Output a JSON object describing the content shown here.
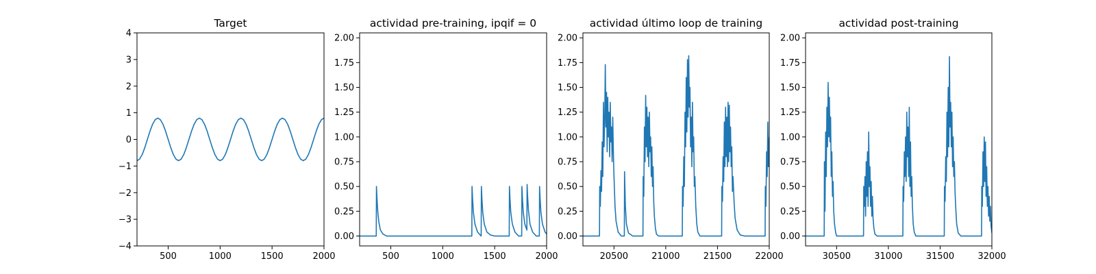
{
  "colors": {
    "series": "#1f77b4",
    "frame": "#000000",
    "background": "#ffffff"
  },
  "chart_data": [
    {
      "type": "line",
      "title": "Target",
      "xlabel": "",
      "ylabel": "",
      "xlim": [
        200,
        2000
      ],
      "ylim": [
        -4,
        4
      ],
      "xticks": [
        500,
        1000,
        1500,
        2000
      ],
      "xtick_labels": [
        "500",
        "1000",
        "1500",
        "2000"
      ],
      "yticks": [
        -4,
        -3,
        -2,
        -1,
        0,
        1,
        2,
        3,
        4
      ],
      "ytick_labels": [
        "−4",
        "−3",
        "−2",
        "−1",
        "0",
        "1",
        "2",
        "3",
        "4"
      ],
      "series": [
        {
          "x": [
            200,
            225,
            250,
            275,
            300,
            325,
            350,
            375,
            400,
            425,
            450,
            475,
            500,
            525,
            550,
            575,
            600,
            625,
            650,
            675,
            700,
            725,
            750,
            775,
            800,
            825,
            850,
            875,
            900,
            925,
            950,
            975,
            1000,
            1025,
            1050,
            1075,
            1100,
            1125,
            1150,
            1175,
            1200,
            1225,
            1250,
            1275,
            1300,
            1325,
            1350,
            1375,
            1400,
            1425,
            1450,
            1475,
            1500,
            1525,
            1550,
            1575,
            1600,
            1625,
            1650,
            1675,
            1700,
            1725,
            1750,
            1775,
            1800,
            1825,
            1850,
            1875,
            1900,
            1925,
            1950,
            1975,
            2000
          ],
          "y": [
            -0.8,
            -0.74,
            -0.57,
            -0.31,
            0.0,
            0.31,
            0.57,
            0.74,
            0.8,
            0.74,
            0.57,
            0.31,
            0.0,
            -0.31,
            -0.57,
            -0.74,
            -0.8,
            -0.74,
            -0.57,
            -0.31,
            0.0,
            0.31,
            0.57,
            0.74,
            0.8,
            0.74,
            0.57,
            0.31,
            0.0,
            -0.31,
            -0.57,
            -0.74,
            -0.8,
            -0.74,
            -0.57,
            -0.31,
            0.0,
            0.31,
            0.57,
            0.74,
            0.8,
            0.74,
            0.57,
            0.31,
            0.0,
            -0.31,
            -0.57,
            -0.74,
            -0.8,
            -0.74,
            -0.57,
            -0.31,
            0.0,
            0.31,
            0.57,
            0.74,
            0.8,
            0.74,
            0.57,
            0.31,
            0.0,
            -0.31,
            -0.57,
            -0.74,
            -0.8,
            -0.74,
            -0.57,
            -0.31,
            0.0,
            0.31,
            0.57,
            0.74,
            0.8
          ]
        }
      ]
    },
    {
      "type": "line",
      "title": "actividad pre-training, ipqif = 0",
      "xlabel": "",
      "ylabel": "",
      "xlim": [
        200,
        2000
      ],
      "ylim": [
        -0.1,
        2.05
      ],
      "xticks": [
        500,
        1000,
        1500,
        2000
      ],
      "xtick_labels": [
        "500",
        "1000",
        "1500",
        "2000"
      ],
      "yticks": [
        0.0,
        0.25,
        0.5,
        0.75,
        1.0,
        1.25,
        1.5,
        1.75,
        2.0
      ],
      "ytick_labels": [
        "0.00",
        "0.25",
        "0.50",
        "0.75",
        "1.00",
        "1.25",
        "1.50",
        "1.75",
        "2.00"
      ],
      "series": [
        {
          "x": [
            200,
            360,
            362,
            367,
            375,
            385,
            400,
            425,
            460,
            520,
            600,
            800,
            1000,
            1200,
            1280,
            1282,
            1287,
            1295,
            1310,
            1335,
            1370,
            1372,
            1377,
            1385,
            1400,
            1425,
            1460,
            1500,
            1560,
            1640,
            1642,
            1647,
            1655,
            1670,
            1695,
            1730,
            1760,
            1762,
            1767,
            1775,
            1790,
            1810,
            1812,
            1817,
            1825,
            1840,
            1865,
            1900,
            1930,
            1932,
            1937,
            1945,
            1960,
            1985,
            2000
          ],
          "y": [
            0.0,
            0.0,
            0.5,
            0.38,
            0.24,
            0.14,
            0.06,
            0.02,
            0.0,
            0.0,
            0.0,
            0.0,
            0.0,
            0.0,
            0.0,
            0.5,
            0.38,
            0.24,
            0.12,
            0.04,
            0.0,
            0.5,
            0.38,
            0.24,
            0.12,
            0.04,
            0.01,
            0.0,
            0.0,
            0.0,
            0.5,
            0.38,
            0.24,
            0.12,
            0.04,
            0.0,
            0.0,
            0.5,
            0.38,
            0.24,
            0.12,
            0.06,
            0.52,
            0.4,
            0.26,
            0.12,
            0.04,
            0.0,
            0.0,
            0.5,
            0.38,
            0.24,
            0.12,
            0.04,
            0.02
          ]
        }
      ]
    },
    {
      "type": "line",
      "title": "actividad último loop de training",
      "xlabel": "",
      "ylabel": "",
      "xlim": [
        20200,
        22000
      ],
      "ylim": [
        -0.1,
        2.05
      ],
      "xticks": [
        20500,
        21000,
        21500,
        22000
      ],
      "xtick_labels": [
        "20500",
        "21000",
        "21500",
        "22000"
      ],
      "yticks": [
        0.0,
        0.25,
        0.5,
        0.75,
        1.0,
        1.25,
        1.5,
        1.75,
        2.0
      ],
      "ytick_labels": [
        "0.00",
        "0.25",
        "0.50",
        "0.75",
        "1.00",
        "1.25",
        "1.50",
        "1.75",
        "2.00"
      ],
      "series": [
        {
          "x": [
            20200,
            20360,
            20362,
            20368,
            20374,
            20380,
            20386,
            20392,
            20398,
            20404,
            20410,
            20416,
            20422,
            20428,
            20434,
            20440,
            20446,
            20452,
            20458,
            20464,
            20470,
            20476,
            20482,
            20488,
            20494,
            20500,
            20510,
            20520,
            20540,
            20570,
            20600,
            20602,
            20610,
            20620,
            20640,
            20680,
            20740,
            20780,
            20782,
            20788,
            20794,
            20800,
            20806,
            20812,
            20818,
            20824,
            20830,
            20836,
            20842,
            20848,
            20854,
            20860,
            20866,
            20872,
            20878,
            20884,
            20890,
            20900,
            20910,
            20930,
            20960,
            21000,
            21050,
            21100,
            21140,
            21160,
            21162,
            21168,
            21174,
            21180,
            21186,
            21192,
            21198,
            21204,
            21210,
            21216,
            21222,
            21228,
            21234,
            21240,
            21246,
            21252,
            21258,
            21264,
            21270,
            21276,
            21282,
            21290,
            21300,
            21310,
            21330,
            21360,
            21400,
            21450,
            21500,
            21540,
            21542,
            21548,
            21554,
            21560,
            21566,
            21572,
            21578,
            21584,
            21590,
            21596,
            21602,
            21608,
            21614,
            21620,
            21626,
            21632,
            21638,
            21644,
            21650,
            21660,
            21670,
            21690,
            21720,
            21760,
            21800,
            21850,
            21900,
            21960,
            21962,
            21968,
            21974,
            21980,
            21986,
            21992,
            22000
          ],
          "y": [
            0.0,
            0.0,
            0.5,
            0.3,
            0.66,
            0.45,
            0.95,
            0.6,
            1.35,
            0.9,
            1.15,
            1.73,
            1.1,
            1.45,
            0.85,
            1.4,
            1.0,
            1.25,
            0.8,
            1.35,
            0.95,
            1.1,
            0.75,
            1.2,
            0.85,
            0.6,
            0.3,
            0.15,
            0.04,
            0.0,
            0.0,
            0.65,
            0.3,
            0.12,
            0.03,
            0.0,
            0.0,
            0.0,
            0.6,
            0.4,
            1.1,
            0.75,
            1.42,
            0.9,
            1.3,
            0.8,
            1.2,
            0.7,
            1.25,
            0.85,
            1.0,
            0.6,
            0.9,
            0.5,
            0.7,
            0.35,
            0.2,
            0.08,
            0.02,
            0.0,
            0.0,
            0.0,
            0.0,
            0.0,
            0.0,
            0.0,
            0.5,
            0.3,
            0.8,
            0.5,
            1.25,
            0.9,
            1.6,
            1.05,
            1.78,
            1.2,
            1.82,
            1.3,
            1.5,
            0.9,
            1.2,
            0.7,
            1.35,
            0.85,
            1.0,
            0.5,
            0.6,
            0.3,
            0.12,
            0.04,
            0.0,
            0.0,
            0.0,
            0.0,
            0.0,
            0.0,
            0.5,
            0.35,
            0.8,
            0.55,
            1.15,
            0.7,
            1.3,
            0.8,
            1.2,
            0.7,
            1.35,
            0.75,
            1.32,
            0.85,
            1.1,
            0.7,
            0.9,
            0.45,
            0.6,
            0.35,
            0.18,
            0.06,
            0.01,
            0.0,
            0.0,
            0.0,
            0.0,
            0.0,
            0.5,
            0.3,
            0.85,
            0.6,
            1.15,
            0.7,
            1.0
          ]
        }
      ]
    },
    {
      "type": "line",
      "title": "actividad post-training",
      "xlabel": "",
      "ylabel": "",
      "xlim": [
        30200,
        32000
      ],
      "ylim": [
        -0.1,
        2.05
      ],
      "xticks": [
        30500,
        31000,
        31500,
        32000
      ],
      "xtick_labels": [
        "30500",
        "31000",
        "31500",
        "32000"
      ],
      "yticks": [
        0.0,
        0.25,
        0.5,
        0.75,
        1.0,
        1.25,
        1.5,
        1.75,
        2.0
      ],
      "ytick_labels": [
        "0.00",
        "0.25",
        "0.50",
        "0.75",
        "1.00",
        "1.25",
        "1.50",
        "1.75",
        "2.00"
      ],
      "series": [
        {
          "x": [
            30200,
            30380,
            30382,
            30388,
            30394,
            30400,
            30406,
            30412,
            30418,
            30424,
            30430,
            30436,
            30442,
            30448,
            30454,
            30460,
            30466,
            30472,
            30480,
            30490,
            30500,
            30520,
            30550,
            30590,
            30640,
            30700,
            30760,
            30762,
            30768,
            30774,
            30780,
            30786,
            30792,
            30798,
            30804,
            30810,
            30816,
            30822,
            30828,
            30834,
            30840,
            30846,
            30852,
            30860,
            30870,
            30890,
            30920,
            30960,
            31000,
            31050,
            31100,
            31140,
            31142,
            31148,
            31154,
            31160,
            31166,
            31172,
            31178,
            31184,
            31190,
            31196,
            31202,
            31208,
            31214,
            31220,
            31226,
            31232,
            31240,
            31250,
            31265,
            31290,
            31330,
            31380,
            31430,
            31470,
            31500,
            31540,
            31542,
            31548,
            31554,
            31560,
            31566,
            31572,
            31578,
            31584,
            31590,
            31596,
            31602,
            31608,
            31614,
            31620,
            31626,
            31632,
            31638,
            31644,
            31650,
            31660,
            31675,
            31700,
            31740,
            31800,
            31850,
            31900,
            31902,
            31908,
            31914,
            31920,
            31926,
            31932,
            31938,
            31944,
            31950,
            31956,
            31962,
            31968,
            31974,
            31980,
            31986,
            31992,
            32000
          ],
          "y": [
            0.0,
            0.0,
            0.75,
            0.25,
            1.05,
            0.6,
            1.3,
            0.9,
            1.55,
            1.0,
            1.4,
            0.95,
            1.2,
            0.6,
            0.85,
            0.4,
            0.55,
            0.25,
            0.12,
            0.04,
            0.0,
            0.0,
            0.0,
            0.0,
            0.0,
            0.0,
            0.0,
            0.5,
            0.3,
            0.6,
            0.2,
            0.75,
            0.4,
            0.85,
            0.3,
            1.05,
            0.5,
            0.7,
            0.3,
            0.55,
            0.2,
            0.4,
            0.18,
            0.08,
            0.02,
            0.0,
            0.0,
            0.0,
            0.0,
            0.0,
            0.0,
            0.0,
            0.5,
            0.35,
            0.85,
            0.6,
            1.0,
            0.55,
            1.25,
            0.8,
            1.1,
            0.6,
            1.3,
            0.5,
            0.95,
            0.4,
            0.6,
            0.3,
            0.12,
            0.04,
            0.0,
            0.0,
            0.0,
            0.0,
            0.0,
            0.0,
            0.0,
            0.0,
            0.5,
            0.35,
            0.8,
            0.55,
            1.25,
            0.8,
            1.5,
            0.9,
            1.81,
            1.1,
            1.35,
            0.9,
            1.25,
            0.7,
            1.0,
            0.6,
            0.75,
            0.45,
            0.3,
            0.12,
            0.03,
            0.0,
            0.0,
            0.0,
            0.0,
            0.0,
            0.5,
            0.3,
            0.85,
            0.5,
            1.0,
            0.55,
            0.95,
            0.4,
            0.7,
            0.3,
            0.5,
            0.2,
            0.4,
            0.15,
            0.3,
            0.1,
            0.03
          ]
        }
      ]
    }
  ]
}
